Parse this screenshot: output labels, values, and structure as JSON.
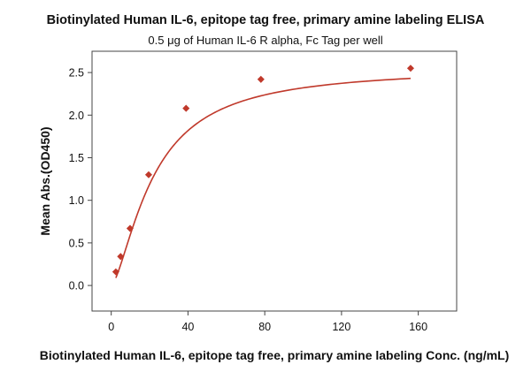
{
  "chart_data": {
    "type": "scatter",
    "title": "Biotinylated Human IL-6, epitope tag free, primary amine labeling ELISA",
    "subtitle": "0.5 μg of Human IL-6 R alpha, Fc Tag per well",
    "xlabel": "Biotinylated Human IL-6, epitope tag free, primary amine labeling Conc. (ng/mL)",
    "ylabel": "Mean Abs.(OD450)",
    "xlim": [
      -10,
      180
    ],
    "ylim": [
      -0.3,
      2.75
    ],
    "x_ticks": [
      "0",
      "40",
      "80",
      "120",
      "160"
    ],
    "y_ticks": [
      "0.0",
      "0.5",
      "1.0",
      "1.5",
      "2.0",
      "2.5"
    ],
    "grid": false,
    "marker_color": "#c0392b",
    "curve_color": "#c0392b",
    "series": [
      {
        "points": [
          {
            "x": 2.4,
            "y": 0.16
          },
          {
            "x": 4.9,
            "y": 0.34
          },
          {
            "x": 9.8,
            "y": 0.67
          },
          {
            "x": 19.5,
            "y": 1.3
          },
          {
            "x": 39,
            "y": 2.08
          },
          {
            "x": 78,
            "y": 2.42
          },
          {
            "x": 156,
            "y": 2.55
          }
        ]
      }
    ],
    "fit_curve": {
      "bottom": 0.0,
      "top": 2.56,
      "ec50": 22.0,
      "hill": 1.5
    }
  }
}
